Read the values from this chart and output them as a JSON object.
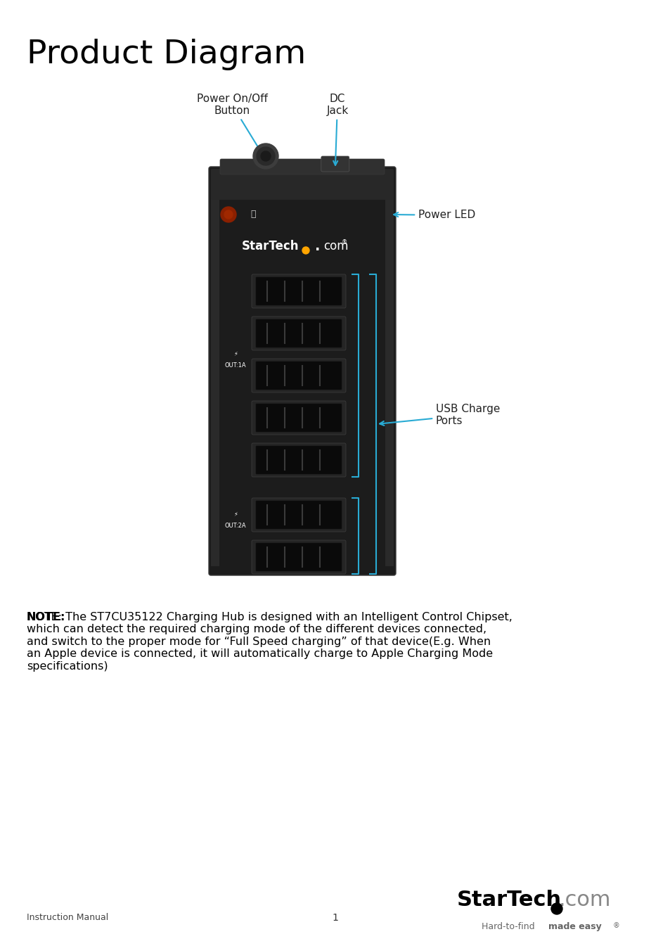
{
  "title": "Product Diagram",
  "background_color": "#ffffff",
  "title_fontsize": 34,
  "annotation_color": "#29ABD4",
  "annotation_fontsize": 11,
  "note_bold": "NOTE:",
  "note_rest": " The ST7CU35122 Charging Hub is designed with an Intelligent Control Chipset,\nwhich can detect the required charging mode of the different devices connected,\nand switch to the proper mode for “Full Speed charging” of that device(E.g. When\nan Apple device is connected, it will automatically charge to Apple Charging Mode\nspecifications)",
  "note_fontsize": 11.5,
  "footer_left": "Instruction Manual",
  "footer_center": "1",
  "device_color": "#1c1c1c",
  "device_edge_color": "#383838",
  "port_color": "#0d0d0d",
  "port_bezel_color": "#2a2a2a",
  "led_color": "#8B2000",
  "bracket_color": "#29ABD4",
  "startech_black": "#000000",
  "startech_gray": "#888888",
  "dot_color": "#000000",
  "tagline_color": "#666666"
}
